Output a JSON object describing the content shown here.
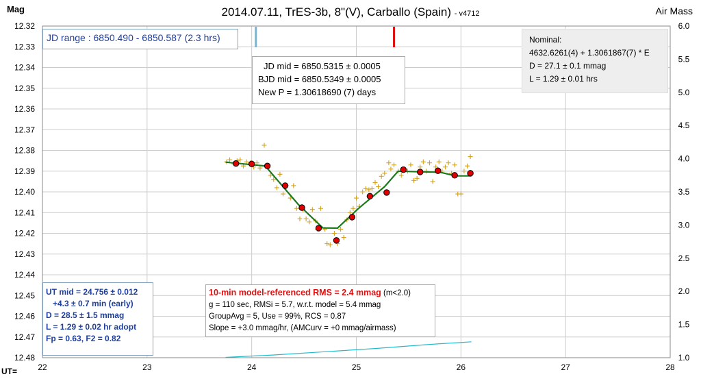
{
  "chart_data": {
    "type": "scatter",
    "title": "2014.07.11, TrES-3b, 8\"(V), Carballo (Spain)",
    "version": "- v4712",
    "ylabel": "Mag",
    "y2label": "Air Mass",
    "xlabel": "UT=",
    "xlim": [
      22,
      28
    ],
    "ylim": [
      12.48,
      12.32
    ],
    "y2lim": [
      1.0,
      6.0
    ],
    "y_reversed": true,
    "grid": true,
    "x_ticks": [
      "22",
      "23",
      "24",
      "25",
      "26",
      "27",
      "28"
    ],
    "y_ticks": [
      "12.32",
      "12.33",
      "12.34",
      "12.35",
      "12.36",
      "12.37",
      "12.38",
      "12.39",
      "12.40",
      "12.41",
      "12.42",
      "12.43",
      "12.44",
      "12.45",
      "12.46",
      "12.47",
      "12.48"
    ],
    "y2_ticks": [
      "6.0",
      "5.5",
      "5.0",
      "4.5",
      "4.0",
      "3.5",
      "3.0",
      "2.5",
      "2.0",
      "1.5",
      "1.0"
    ],
    "series": [
      {
        "kind": "raw",
        "color": "#d4a017",
        "points": [
          [
            23.76,
            12.3855
          ],
          [
            23.79,
            12.3845
          ],
          [
            23.83,
            12.3865
          ],
          [
            23.86,
            12.385
          ],
          [
            23.89,
            12.3845
          ],
          [
            23.92,
            12.3875
          ],
          [
            23.95,
            12.3855
          ],
          [
            23.99,
            12.386
          ],
          [
            24.02,
            12.388
          ],
          [
            24.05,
            12.386
          ],
          [
            24.08,
            12.3885
          ],
          [
            24.12,
            12.3775
          ],
          [
            24.15,
            12.388
          ],
          [
            24.18,
            12.392
          ],
          [
            24.21,
            12.394
          ],
          [
            24.24,
            12.398
          ],
          [
            24.27,
            12.3915
          ],
          [
            24.3,
            12.401
          ],
          [
            24.33,
            12.397
          ],
          [
            24.37,
            12.403
          ],
          [
            24.4,
            12.397
          ],
          [
            24.43,
            12.408
          ],
          [
            24.46,
            12.413
          ],
          [
            24.49,
            12.4085
          ],
          [
            24.52,
            12.413
          ],
          [
            24.55,
            12.4145
          ],
          [
            24.58,
            12.4085
          ],
          [
            24.61,
            12.414
          ],
          [
            24.63,
            12.418
          ],
          [
            24.66,
            12.408
          ],
          [
            24.7,
            12.418
          ],
          [
            24.72,
            12.425
          ],
          [
            24.75,
            12.4255
          ],
          [
            24.79,
            12.42
          ],
          [
            24.82,
            12.425
          ],
          [
            24.85,
            12.418
          ],
          [
            24.88,
            12.422
          ],
          [
            24.91,
            12.4135
          ],
          [
            24.94,
            12.41
          ],
          [
            24.97,
            12.408
          ],
          [
            25.0,
            12.403
          ],
          [
            25.03,
            12.407
          ],
          [
            25.06,
            12.4
          ],
          [
            25.09,
            12.3985
          ],
          [
            25.12,
            12.399
          ],
          [
            25.15,
            12.3985
          ],
          [
            25.18,
            12.3955
          ],
          [
            25.21,
            12.3975
          ],
          [
            25.24,
            12.3925
          ],
          [
            25.27,
            12.391
          ],
          [
            25.31,
            12.386
          ],
          [
            25.33,
            12.389
          ],
          [
            25.36,
            12.387
          ],
          [
            25.4,
            12.39
          ],
          [
            25.43,
            12.392
          ],
          [
            25.46,
            12.389
          ],
          [
            25.49,
            12.39
          ],
          [
            25.52,
            12.387
          ],
          [
            25.55,
            12.3945
          ],
          [
            25.58,
            12.3935
          ],
          [
            25.61,
            12.388
          ],
          [
            25.64,
            12.3855
          ],
          [
            25.67,
            12.39
          ],
          [
            25.7,
            12.386
          ],
          [
            25.73,
            12.395
          ],
          [
            25.76,
            12.388
          ],
          [
            25.79,
            12.3855
          ],
          [
            25.82,
            12.39
          ],
          [
            25.85,
            12.388
          ],
          [
            25.88,
            12.386
          ],
          [
            25.91,
            12.391
          ],
          [
            25.94,
            12.387
          ],
          [
            25.97,
            12.401
          ],
          [
            26.0,
            12.401
          ],
          [
            26.03,
            12.39
          ],
          [
            26.06,
            12.3875
          ],
          [
            26.09,
            12.383
          ]
        ]
      },
      {
        "kind": "binned",
        "color": "#e00000",
        "points": [
          [
            23.85,
            12.3863
          ],
          [
            24.0,
            12.3865
          ],
          [
            24.15,
            12.3875
          ],
          [
            24.32,
            12.397
          ],
          [
            24.48,
            12.4076
          ],
          [
            24.64,
            12.4175
          ],
          [
            24.81,
            12.4234
          ],
          [
            24.96,
            12.4122
          ],
          [
            25.13,
            12.4021
          ],
          [
            25.29,
            12.4003
          ],
          [
            25.45,
            12.3893
          ],
          [
            25.61,
            12.3904
          ],
          [
            25.78,
            12.3898
          ],
          [
            25.94,
            12.392
          ],
          [
            26.09,
            12.391
          ]
        ]
      },
      {
        "kind": "model",
        "color": "#1c7a1c",
        "points": [
          [
            23.75,
            12.3857
          ],
          [
            24.13,
            12.3875
          ],
          [
            24.45,
            12.4063
          ],
          [
            24.68,
            12.4174
          ],
          [
            24.82,
            12.4175
          ],
          [
            25.02,
            12.408
          ],
          [
            25.27,
            12.3975
          ],
          [
            25.4,
            12.39
          ],
          [
            25.6,
            12.3903
          ],
          [
            25.8,
            12.3905
          ],
          [
            25.95,
            12.3923
          ],
          [
            26.1,
            12.3923
          ]
        ]
      },
      {
        "kind": "airmass",
        "color": "#22bbcc",
        "axis": "y2",
        "points": [
          [
            23.75,
            1.005
          ],
          [
            24.2,
            1.04
          ],
          [
            24.7,
            1.09
          ],
          [
            25.2,
            1.14
          ],
          [
            25.7,
            1.2
          ],
          [
            26.1,
            1.24
          ]
        ]
      }
    ],
    "markers": [
      {
        "x": 24.04,
        "color": "#7fb2cc"
      },
      {
        "x": 25.36,
        "color": "#dd1111"
      }
    ]
  },
  "annotations": {
    "jd_range": "JD range : 6850.490 - 6850.587 (2.3 hrs)",
    "mid_box": [
      "JD mid  = 6850.5315 ±  0.0005",
      "BJD mid = 6850.5349 ±  0.0005",
      "New P = 1.30618690 (7) days"
    ],
    "nominal_box": [
      "Nominal:",
      "4632.6261(4)  + 1.3061867(7)  * E",
      "D = 27.1 ± 0.1 mmag",
      "L = 1.29 ± 0.01 hrs"
    ],
    "ut_box": [
      "UT mid = 24.756  ± 0.012",
      "   +4.3 ± 0.7 min (early)",
      "D = 28.5 ± 1.5 mmag",
      "L = 1.29 ± 0.02 hr adopt",
      "Fp = 0.63, F2 = 0.82"
    ],
    "rms_title": "10-min  model-referenced RMS = 2.4 mmag",
    "rms_note": " (m<2.0)",
    "rms_lines": [
      "g = 110 sec, RMSi = 5.7, w.r.t. model = 5.4 mmag",
      "GroupAvg  = 5, Use = 99%, RCS = 0.87",
      "Slope = +3.0 mmag/hr,  (AMCurv  = +0 mmag/airmass)"
    ],
    "colors": {
      "blue_text": "#1f3f9f",
      "rms_red": "#dd1111"
    }
  }
}
